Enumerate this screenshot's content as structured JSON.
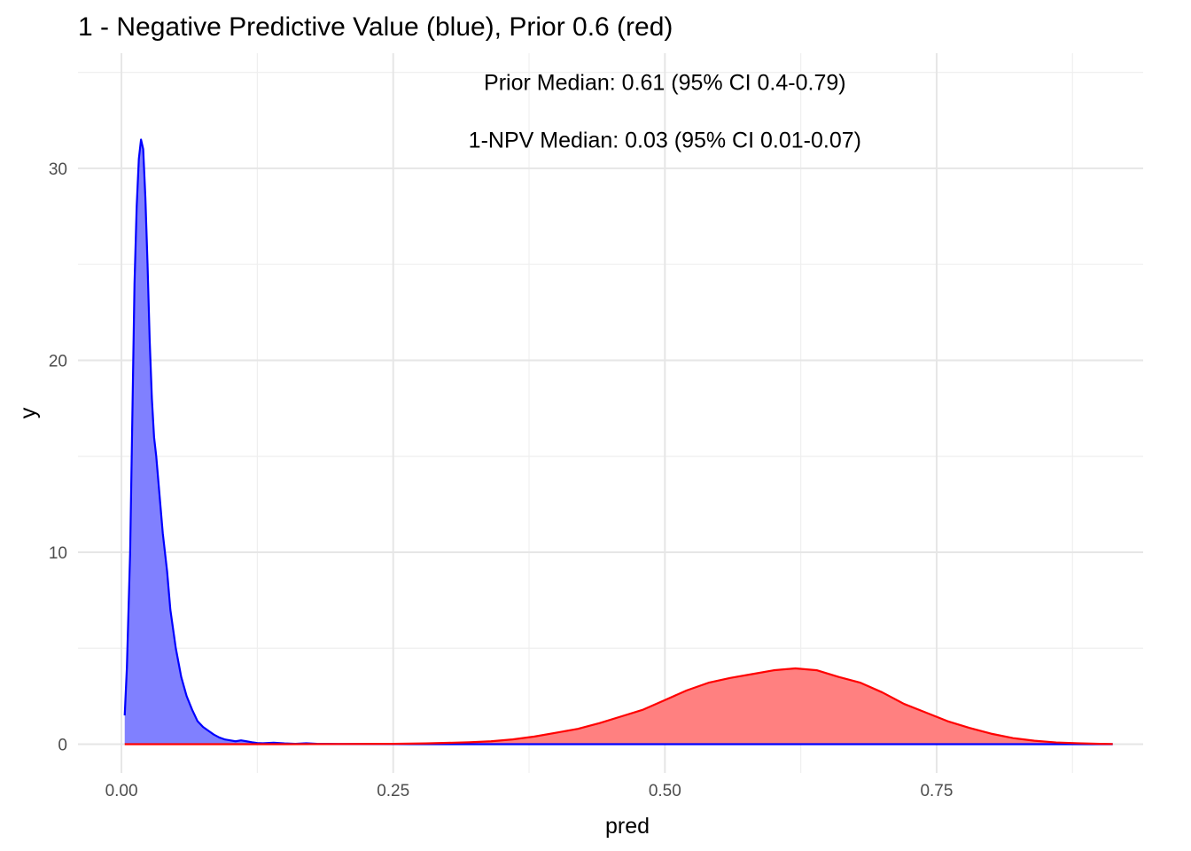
{
  "chart_data": {
    "type": "area",
    "title": "1 - Negative Predictive Value (blue), Prior 0.6 (red)",
    "xlabel": "pred",
    "ylabel": "y",
    "xlim": [
      -0.04,
      0.94
    ],
    "ylim": [
      -1.5,
      36
    ],
    "x_ticks": [
      0.0,
      0.25,
      0.5,
      0.75
    ],
    "x_tick_labels": [
      "0.00",
      "0.25",
      "0.50",
      "0.75"
    ],
    "y_ticks": [
      0,
      10,
      20,
      30
    ],
    "y_tick_labels": [
      "0",
      "10",
      "20",
      "30"
    ],
    "grid": true,
    "annotations": [
      {
        "text": "Prior Median: 0.61 (95% CI 0.4-0.79)",
        "x": 0.5,
        "y": 34.5
      },
      {
        "text": "1-NPV Median: 0.03 (95% CI 0.01-0.07)",
        "x": 0.5,
        "y": 31.5
      }
    ],
    "series": [
      {
        "color": "#0000ff",
        "fill": "#8080ff",
        "x": [
          0.003,
          0.005,
          0.008,
          0.01,
          0.012,
          0.014,
          0.016,
          0.018,
          0.02,
          0.022,
          0.024,
          0.026,
          0.028,
          0.03,
          0.032,
          0.035,
          0.038,
          0.042,
          0.045,
          0.05,
          0.055,
          0.06,
          0.065,
          0.07,
          0.075,
          0.08,
          0.085,
          0.09,
          0.095,
          0.1,
          0.105,
          0.11,
          0.115,
          0.12,
          0.125,
          0.13,
          0.14,
          0.15,
          0.16,
          0.17,
          0.18,
          0.2,
          0.3,
          0.5,
          0.7,
          0.912
        ],
        "y": [
          1.5,
          4,
          10,
          17,
          24,
          28,
          30.5,
          31.5,
          31,
          28.5,
          25,
          21,
          18,
          16,
          15,
          13,
          11,
          9,
          7,
          5,
          3.5,
          2.5,
          1.8,
          1.2,
          0.9,
          0.7,
          0.5,
          0.35,
          0.25,
          0.2,
          0.15,
          0.2,
          0.15,
          0.1,
          0.06,
          0.05,
          0.08,
          0.04,
          0.02,
          0.05,
          0.02,
          0.01,
          0.0,
          0.0,
          0.0,
          0.0
        ]
      },
      {
        "color": "#ff0000",
        "fill": "#ff8080",
        "x": [
          0.003,
          0.05,
          0.1,
          0.15,
          0.2,
          0.25,
          0.28,
          0.3,
          0.32,
          0.34,
          0.36,
          0.38,
          0.4,
          0.42,
          0.44,
          0.46,
          0.48,
          0.5,
          0.52,
          0.54,
          0.56,
          0.58,
          0.6,
          0.62,
          0.64,
          0.66,
          0.68,
          0.7,
          0.72,
          0.74,
          0.76,
          0.78,
          0.8,
          0.82,
          0.84,
          0.86,
          0.88,
          0.9,
          0.912
        ],
        "y": [
          0.0,
          0.0,
          0.0,
          0.0,
          0.01,
          0.02,
          0.04,
          0.07,
          0.1,
          0.15,
          0.25,
          0.4,
          0.6,
          0.8,
          1.1,
          1.45,
          1.8,
          2.3,
          2.8,
          3.2,
          3.45,
          3.65,
          3.85,
          3.95,
          3.85,
          3.5,
          3.2,
          2.7,
          2.1,
          1.65,
          1.2,
          0.85,
          0.55,
          0.32,
          0.18,
          0.09,
          0.05,
          0.02,
          0.01
        ]
      }
    ]
  }
}
